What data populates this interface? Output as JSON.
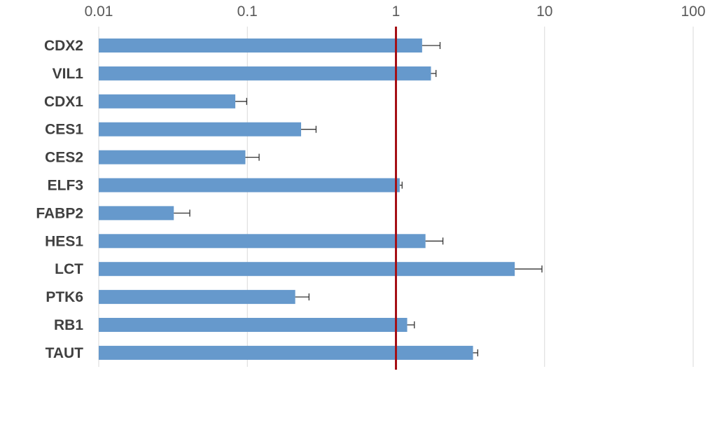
{
  "chart_data": {
    "type": "bar",
    "orientation": "horizontal",
    "x_scale": "log",
    "xlim": [
      0.01,
      100
    ],
    "x_ticks": [
      "0.01",
      "0.1",
      "1",
      "10",
      "100"
    ],
    "x_tick_values": [
      0.01,
      0.1,
      1,
      10,
      100
    ],
    "x_axis_position": "top",
    "grid": "vertical",
    "reference_line": {
      "x": 1,
      "color": "#a50f15"
    },
    "bar_color": "#6699cc",
    "categories": [
      "CDX2",
      "VIL1",
      "CDX1",
      "CES1",
      "CES2",
      "ELF3",
      "FABP2",
      "HES1",
      "LCT",
      "PTK6",
      "RB1",
      "TAUT"
    ],
    "values": [
      1.5,
      1.72,
      0.083,
      0.23,
      0.097,
      1.06,
      0.032,
      1.58,
      6.3,
      0.21,
      1.19,
      3.3
    ],
    "error_upper": [
      1.98,
      1.86,
      0.099,
      0.29,
      0.12,
      1.1,
      0.041,
      2.07,
      9.6,
      0.26,
      1.33,
      3.55
    ]
  }
}
